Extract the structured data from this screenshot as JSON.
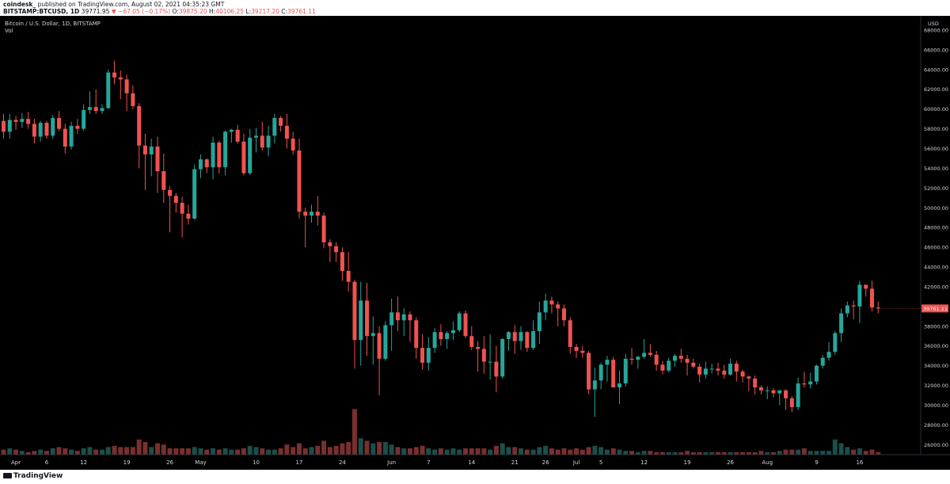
{
  "header": {
    "author": "coindesk_",
    "published": "published on TradingView.com, August 02, 2021 04:35:23 GMT",
    "symbol": "BITSTAMP:BTCUSD, 1D",
    "last": "39771.95",
    "change_arrow": "▼",
    "change": "−67.05 (−0.17%)",
    "o_label": "O:",
    "o": "39875.20",
    "h_label": "H:",
    "h": "40106.25",
    "l_label": "L:",
    "l": "39217.20",
    "c_label": "C:",
    "c": "39761.11"
  },
  "footer": {
    "logo_text": "TradingView"
  },
  "colors": {
    "up": "#26a69a",
    "down": "#ef5350",
    "background": "#000000",
    "axis_text": "#d1d4dc"
  },
  "chart_data": {
    "type": "candlestick",
    "title": "Bitcoin / U.S. Dollar, 1D, BITSTAMP",
    "volume_label": "Vol",
    "currency_label": "USD",
    "last_price_label": "39761.11",
    "ylim": [
      24500,
      68800
    ],
    "y_ticks": [
      26000,
      28000,
      30000,
      32000,
      34000,
      36000,
      38000,
      40000,
      42000,
      44000,
      46000,
      48000,
      50000,
      52000,
      54000,
      56000,
      58000,
      60000,
      62000,
      64000,
      66000,
      68000
    ],
    "x_ticks": [
      {
        "label": "Apr",
        "index": 2
      },
      {
        "label": "6",
        "index": 7
      },
      {
        "label": "12",
        "index": 13
      },
      {
        "label": "19",
        "index": 20
      },
      {
        "label": "26",
        "index": 27
      },
      {
        "label": "May",
        "index": 32
      },
      {
        "label": "10",
        "index": 41
      },
      {
        "label": "17",
        "index": 48
      },
      {
        "label": "24",
        "index": 55
      },
      {
        "label": "Jun",
        "index": 63
      },
      {
        "label": "7",
        "index": 69
      },
      {
        "label": "14",
        "index": 76
      },
      {
        "label": "21",
        "index": 83
      },
      {
        "label": "26",
        "index": 88
      },
      {
        "label": "Jul",
        "index": 93
      },
      {
        "label": "5",
        "index": 97
      },
      {
        "label": "12",
        "index": 104
      },
      {
        "label": "19",
        "index": 111
      },
      {
        "label": "26",
        "index": 118
      },
      {
        "label": "Aug",
        "index": 124
      },
      {
        "label": "9",
        "index": 132
      },
      {
        "label": "16",
        "index": 139
      }
    ],
    "candles": [
      [
        58800,
        59500,
        57000,
        57700,
        4
      ],
      [
        57700,
        59500,
        57000,
        58900,
        5
      ],
      [
        58900,
        59300,
        57900,
        58700,
        4
      ],
      [
        58700,
        59600,
        58100,
        59000,
        3
      ],
      [
        59000,
        59700,
        58000,
        58500,
        2
      ],
      [
        58500,
        59000,
        56500,
        57200,
        3
      ],
      [
        57200,
        58800,
        56700,
        58600,
        4
      ],
      [
        58600,
        58800,
        57000,
        57300,
        3
      ],
      [
        57300,
        59400,
        57000,
        59100,
        5
      ],
      [
        59100,
        59800,
        57800,
        58000,
        6
      ],
      [
        58000,
        58500,
        55500,
        56200,
        5
      ],
      [
        56200,
        58700,
        55900,
        58300,
        4
      ],
      [
        58300,
        59000,
        57500,
        58000,
        3
      ],
      [
        58000,
        60500,
        57800,
        59900,
        5
      ],
      [
        59900,
        61800,
        59500,
        60200,
        6
      ],
      [
        60200,
        62000,
        59500,
        59800,
        4
      ],
      [
        59800,
        60500,
        59500,
        60100,
        4
      ],
      [
        60100,
        64000,
        60000,
        63700,
        6
      ],
      [
        63700,
        64900,
        62500,
        63200,
        7
      ],
      [
        63200,
        63900,
        61000,
        63000,
        6
      ],
      [
        63000,
        63500,
        59800,
        61600,
        6
      ],
      [
        61600,
        62400,
        60000,
        60300,
        6
      ],
      [
        60300,
        60600,
        54000,
        56300,
        12
      ],
      [
        56300,
        57500,
        51800,
        55400,
        10
      ],
      [
        55400,
        57000,
        53200,
        56200,
        6
      ],
      [
        56200,
        57200,
        51500,
        53700,
        9
      ],
      [
        53700,
        55500,
        50500,
        51800,
        8
      ],
      [
        51800,
        52200,
        47500,
        51200,
        5
      ],
      [
        51200,
        51500,
        49500,
        50500,
        5
      ],
      [
        50500,
        51100,
        47000,
        49400,
        5
      ],
      [
        49400,
        50300,
        48300,
        48900,
        5
      ],
      [
        48900,
        54400,
        48800,
        53900,
        6
      ],
      [
        53900,
        55400,
        53000,
        54900,
        5
      ],
      [
        54900,
        55000,
        53500,
        54100,
        4
      ],
      [
        54100,
        57200,
        52900,
        56600,
        5
      ],
      [
        56600,
        56800,
        53500,
        54100,
        4
      ],
      [
        54100,
        57800,
        53300,
        57700,
        5
      ],
      [
        57700,
        58000,
        56600,
        57900,
        4
      ],
      [
        57900,
        58400,
        56500,
        56700,
        4
      ],
      [
        56700,
        57500,
        53300,
        53500,
        5
      ],
      [
        53500,
        58000,
        53300,
        57100,
        7
      ],
      [
        57100,
        58100,
        55600,
        57300,
        6
      ],
      [
        57300,
        58700,
        55800,
        56100,
        5
      ],
      [
        56100,
        58300,
        55200,
        57300,
        4
      ],
      [
        57300,
        59500,
        56500,
        59100,
        4
      ],
      [
        59100,
        59300,
        57700,
        58300,
        5
      ],
      [
        58300,
        59500,
        56000,
        57000,
        8
      ],
      [
        57000,
        57700,
        55400,
        55800,
        6
      ],
      [
        55800,
        57000,
        48900,
        49600,
        9
      ],
      [
        49600,
        50000,
        46000,
        49200,
        5
      ],
      [
        49200,
        50300,
        48500,
        49600,
        6
      ],
      [
        49600,
        51200,
        48200,
        49200,
        7
      ],
      [
        49200,
        49500,
        45900,
        46500,
        11
      ],
      [
        46500,
        46800,
        44500,
        46100,
        6
      ],
      [
        46100,
        46500,
        44500,
        45500,
        7
      ],
      [
        45500,
        46000,
        42600,
        43600,
        9
      ],
      [
        43600,
        45500,
        41500,
        42500,
        10
      ],
      [
        42500,
        42700,
        33700,
        36600,
        36
      ],
      [
        36600,
        42500,
        34000,
        40600,
        13
      ],
      [
        40600,
        42400,
        35000,
        37000,
        11
      ],
      [
        37000,
        39000,
        34100,
        37300,
        9
      ],
      [
        37300,
        38000,
        31000,
        34700,
        10
      ],
      [
        34700,
        38500,
        34500,
        38100,
        10
      ],
      [
        38100,
        40800,
        35500,
        39400,
        8
      ],
      [
        39400,
        41000,
        37500,
        38600,
        6
      ],
      [
        38600,
        39800,
        37000,
        39200,
        5
      ],
      [
        39200,
        39500,
        36400,
        38600,
        5
      ],
      [
        38600,
        38900,
        34700,
        35800,
        6
      ],
      [
        35800,
        37200,
        33600,
        34300,
        7
      ],
      [
        34300,
        36900,
        33500,
        35800,
        5
      ],
      [
        35800,
        37800,
        35300,
        37400,
        4
      ],
      [
        37400,
        38200,
        36000,
        36700,
        5
      ],
      [
        36700,
        37500,
        35700,
        37300,
        4
      ],
      [
        37300,
        38500,
        36600,
        37600,
        5
      ],
      [
        37600,
        39500,
        37400,
        39300,
        4
      ],
      [
        39300,
        39600,
        36800,
        37000,
        5
      ],
      [
        37000,
        38000,
        35600,
        35900,
        5
      ],
      [
        35900,
        36500,
        33400,
        35700,
        5
      ],
      [
        35700,
        37000,
        33200,
        34400,
        5
      ],
      [
        34400,
        37200,
        32600,
        34400,
        4
      ],
      [
        34400,
        36000,
        31300,
        32900,
        7
      ],
      [
        32900,
        36800,
        32700,
        36700,
        9
      ],
      [
        36700,
        37500,
        35500,
        37400,
        6
      ],
      [
        37400,
        38100,
        35200,
        36500,
        6
      ],
      [
        36500,
        38000,
        35600,
        37400,
        5
      ],
      [
        37400,
        37500,
        35400,
        35800,
        4
      ],
      [
        35800,
        38600,
        35600,
        37500,
        4
      ],
      [
        37500,
        40500,
        36200,
        39400,
        6
      ],
      [
        39400,
        41300,
        38600,
        40600,
        7
      ],
      [
        40600,
        41000,
        39300,
        40200,
        5
      ],
      [
        40200,
        40500,
        38000,
        39800,
        4
      ],
      [
        39800,
        40200,
        38000,
        38600,
        5
      ],
      [
        38600,
        38900,
        35200,
        35900,
        4
      ],
      [
        35900,
        36200,
        34800,
        35500,
        5
      ],
      [
        35500,
        36000,
        34800,
        35300,
        4
      ],
      [
        35300,
        35500,
        31100,
        31600,
        6
      ],
      [
        31600,
        33800,
        28800,
        32500,
        7
      ],
      [
        32500,
        34300,
        31600,
        34100,
        6
      ],
      [
        34100,
        35000,
        32400,
        34600,
        4
      ],
      [
        34600,
        34900,
        32000,
        31800,
        5
      ],
      [
        31800,
        33500,
        30100,
        32200,
        4
      ],
      [
        32200,
        35200,
        31900,
        34700,
        3
      ],
      [
        34700,
        35800,
        34100,
        34600,
        3
      ],
      [
        34600,
        35000,
        33700,
        34900,
        2
      ],
      [
        34900,
        36700,
        34700,
        35300,
        3
      ],
      [
        35300,
        36200,
        34900,
        35100,
        3
      ],
      [
        35100,
        35500,
        33500,
        34100,
        2
      ],
      [
        34100,
        34500,
        33100,
        33500,
        2
      ],
      [
        33500,
        34800,
        33300,
        34500,
        2
      ],
      [
        34500,
        35200,
        33900,
        35000,
        2
      ],
      [
        35000,
        35700,
        34300,
        34700,
        2
      ],
      [
        34700,
        35100,
        33000,
        34300,
        3
      ],
      [
        34300,
        34700,
        33700,
        33900,
        2
      ],
      [
        33900,
        34200,
        32300,
        33100,
        2
      ],
      [
        33100,
        34400,
        32700,
        33700,
        2
      ],
      [
        33700,
        34200,
        33200,
        33700,
        2
      ],
      [
        33700,
        34300,
        33000,
        33500,
        2
      ],
      [
        33500,
        34100,
        32700,
        33100,
        2
      ],
      [
        33100,
        34700,
        33000,
        34200,
        2
      ],
      [
        34200,
        34500,
        32400,
        33400,
        2
      ],
      [
        33400,
        33600,
        32300,
        32900,
        2
      ],
      [
        32900,
        33000,
        31400,
        32700,
        2
      ],
      [
        32700,
        33000,
        31100,
        31800,
        2
      ],
      [
        31800,
        32000,
        31100,
        31500,
        3
      ],
      [
        31500,
        31900,
        30600,
        31500,
        2
      ],
      [
        31500,
        31700,
        30800,
        31200,
        2
      ],
      [
        31200,
        31300,
        30000,
        31500,
        3
      ],
      [
        31500,
        31600,
        29500,
        30700,
        4
      ],
      [
        30700,
        30900,
        29300,
        29800,
        4
      ],
      [
        29800,
        32800,
        29500,
        32200,
        4
      ],
      [
        32200,
        33400,
        31800,
        32100,
        5
      ],
      [
        32100,
        33300,
        31700,
        32400,
        3
      ],
      [
        32400,
        34100,
        32100,
        34000,
        3
      ],
      [
        34000,
        35100,
        33700,
        34800,
        3
      ],
      [
        34800,
        36400,
        34500,
        35400,
        3
      ],
      [
        35400,
        37500,
        35100,
        37300,
        12
      ],
      [
        37300,
        39800,
        36400,
        39300,
        9
      ],
      [
        39300,
        40500,
        38900,
        40100,
        6
      ],
      [
        40100,
        40600,
        38700,
        40000,
        4
      ],
      [
        40000,
        42600,
        38300,
        42200,
        5
      ],
      [
        42200,
        42200,
        41000,
        41800,
        3
      ],
      [
        41800,
        42600,
        39500,
        39900,
        4
      ],
      [
        39900,
        40500,
        39300,
        39800,
        2
      ]
    ]
  }
}
